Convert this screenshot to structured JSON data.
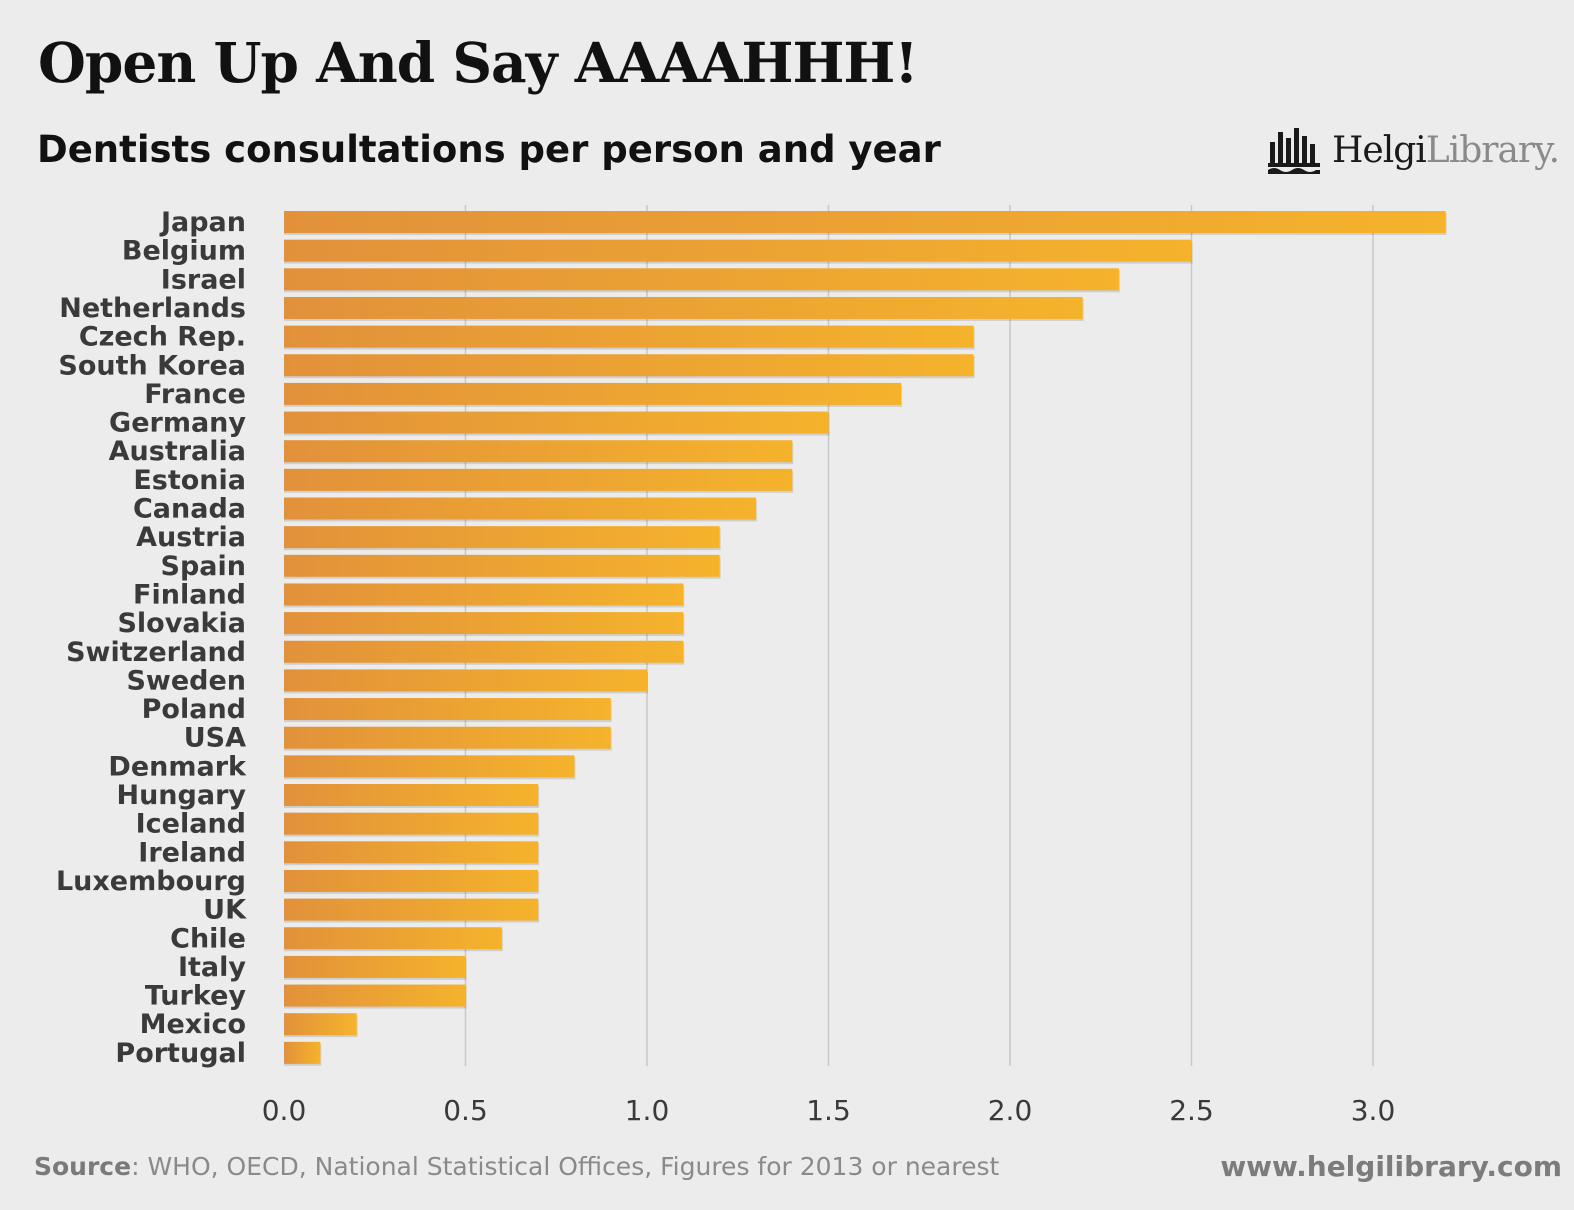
{
  "header": {
    "title": "Open Up And Say AAAAHHH!",
    "subtitle": "Dentists consultations per person and year"
  },
  "logo": {
    "name": "logo-helgi-library",
    "text_bold": "Helgi",
    "text_light": "Library."
  },
  "footer": {
    "source_label": "Source",
    "source_text": ": WHO, OECD, National Statistical Offices, Figures for 2013 or nearest",
    "url": "www.helgilibrary.com"
  },
  "colors": {
    "background": "#ececec",
    "bar_start": "#e2913a",
    "bar_end": "#f5b32c",
    "grid": "#c8c8c8",
    "text": "#3a3a3a"
  },
  "chart_data": {
    "type": "bar",
    "orientation": "horizontal",
    "categories": [
      "Japan",
      "Belgium",
      "Israel",
      "Netherlands",
      "Czech Rep.",
      "South Korea",
      "France",
      "Germany",
      "Australia",
      "Estonia",
      "Canada",
      "Austria",
      "Spain",
      "Finland",
      "Slovakia",
      "Switzerland",
      "Sweden",
      "Poland",
      "USA",
      "Denmark",
      "Hungary",
      "Iceland",
      "Ireland",
      "Luxembourg",
      "UK",
      "Chile",
      "Italy",
      "Turkey",
      "Mexico",
      "Portugal"
    ],
    "values": [
      3.2,
      2.5,
      2.3,
      2.2,
      1.9,
      1.9,
      1.7,
      1.5,
      1.4,
      1.4,
      1.3,
      1.2,
      1.2,
      1.1,
      1.1,
      1.1,
      1.0,
      0.9,
      0.9,
      0.8,
      0.7,
      0.7,
      0.7,
      0.7,
      0.7,
      0.6,
      0.5,
      0.5,
      0.2,
      0.1
    ],
    "xticks": [
      "0.0",
      "0.5",
      "1.0",
      "1.5",
      "2.0",
      "2.5",
      "3.0"
    ],
    "xlim": [
      0,
      3.5
    ],
    "grid": "vertical",
    "legend": "none"
  }
}
